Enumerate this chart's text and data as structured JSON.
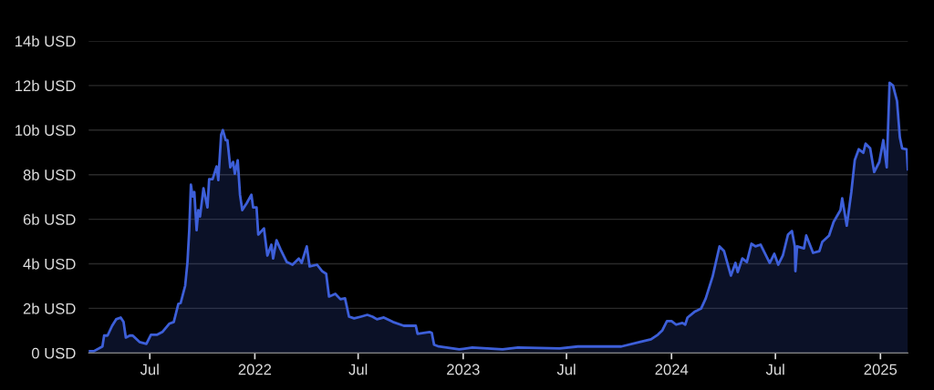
{
  "chart_data": {
    "type": "area",
    "xlim": [
      "2021-03-16",
      "2025-02-18"
    ],
    "xticks": [
      {
        "value": "2021-07-01",
        "label": "Jul"
      },
      {
        "value": "2022-01-01",
        "label": "2022"
      },
      {
        "value": "2022-07-01",
        "label": "Jul"
      },
      {
        "value": "2023-01-01",
        "label": "2023"
      },
      {
        "value": "2023-07-01",
        "label": "Jul"
      },
      {
        "value": "2024-01-01",
        "label": "2024"
      },
      {
        "value": "2024-07-01",
        "label": "Jul"
      },
      {
        "value": "2025-01-01",
        "label": "2025"
      }
    ],
    "ylim": [
      0,
      14
    ],
    "yticks": [
      {
        "value": 0,
        "label": "0 USD"
      },
      {
        "value": 2,
        "label": "2b USD"
      },
      {
        "value": 4,
        "label": "4b USD"
      },
      {
        "value": 6,
        "label": "6b USD"
      },
      {
        "value": 8,
        "label": "8b USD"
      },
      {
        "value": 10,
        "label": "10b USD"
      },
      {
        "value": 12,
        "label": "12b USD"
      },
      {
        "value": 14,
        "label": "14b USD"
      }
    ],
    "grid": "y",
    "legend": false,
    "series": [
      {
        "color": "#3d5fd9",
        "x": [
          "2021-03-17",
          "2021-03-25",
          "2021-04-09",
          "2021-04-12",
          "2021-04-18",
          "2021-04-26",
          "2021-05-03",
          "2021-05-11",
          "2021-05-16",
          "2021-05-20",
          "2021-05-27",
          "2021-06-01",
          "2021-06-13",
          "2021-06-25",
          "2021-07-03",
          "2021-07-14",
          "2021-07-23",
          "2021-08-04",
          "2021-08-12",
          "2021-08-20",
          "2021-08-24",
          "2021-09-01",
          "2021-09-05",
          "2021-09-08",
          "2021-09-11",
          "2021-09-14",
          "2021-09-17",
          "2021-09-21",
          "2021-09-24",
          "2021-09-27",
          "2021-10-03",
          "2021-10-10",
          "2021-10-13",
          "2021-10-19",
          "2021-10-26",
          "2021-10-29",
          "2021-11-03",
          "2021-11-06",
          "2021-11-11",
          "2021-11-14",
          "2021-11-19",
          "2021-11-24",
          "2021-11-27",
          "2021-12-02",
          "2021-12-06",
          "2021-12-10",
          "2021-12-18",
          "2021-12-26",
          "2021-12-29",
          "2022-01-04",
          "2022-01-07",
          "2022-01-17",
          "2022-01-23",
          "2022-01-30",
          "2022-02-02",
          "2022-02-08",
          "2022-02-15",
          "2022-02-26",
          "2022-03-08",
          "2022-03-19",
          "2022-03-24",
          "2022-04-02",
          "2022-04-07",
          "2022-04-20",
          "2022-04-29",
          "2022-05-06",
          "2022-05-11",
          "2022-05-22",
          "2022-05-31",
          "2022-06-08",
          "2022-06-15",
          "2022-06-24",
          "2022-07-06",
          "2022-07-17",
          "2022-07-26",
          "2022-08-03",
          "2022-08-15",
          "2022-08-31",
          "2022-09-19",
          "2022-10-10",
          "2022-10-13",
          "2022-11-03",
          "2022-11-07",
          "2022-11-11",
          "2022-11-19",
          "2022-12-25",
          "2023-01-17",
          "2023-03-11",
          "2023-04-07",
          "2023-06-19",
          "2023-07-21",
          "2023-10-05",
          "2023-11-06",
          "2023-11-26",
          "2023-12-08",
          "2023-12-16",
          "2023-12-24",
          "2024-01-01",
          "2024-01-09",
          "2024-01-20",
          "2024-01-25",
          "2024-01-29",
          "2024-02-10",
          "2024-02-22",
          "2024-03-01",
          "2024-03-13",
          "2024-03-17",
          "2024-03-25",
          "2024-04-02",
          "2024-04-14",
          "2024-04-22",
          "2024-04-26",
          "2024-05-04",
          "2024-05-12",
          "2024-05-20",
          "2024-05-27",
          "2024-06-05",
          "2024-06-21",
          "2024-06-29",
          "2024-07-06",
          "2024-07-14",
          "2024-07-23",
          "2024-07-30",
          "2024-08-04",
          "2024-08-05",
          "2024-08-08",
          "2024-08-20",
          "2024-08-24",
          "2024-09-05",
          "2024-09-16",
          "2024-09-21",
          "2024-10-03",
          "2024-10-11",
          "2024-10-23",
          "2024-10-26",
          "2024-11-03",
          "2024-11-11",
          "2024-11-17",
          "2024-11-24",
          "2024-12-02",
          "2024-12-06",
          "2024-12-14",
          "2024-12-21",
          "2024-12-30",
          "2025-01-06",
          "2025-01-12",
          "2025-01-17",
          "2025-01-23",
          "2025-01-30",
          "2025-02-04",
          "2025-02-08",
          "2025-02-16",
          "2025-02-18"
        ],
        "values": [
          0.08,
          0.08,
          0.29,
          0.78,
          0.78,
          1.22,
          1.51,
          1.59,
          1.39,
          0.69,
          0.78,
          0.78,
          0.49,
          0.41,
          0.82,
          0.82,
          0.94,
          1.31,
          1.39,
          2.2,
          2.24,
          3.02,
          4.08,
          5.47,
          7.55,
          7.02,
          7.22,
          5.51,
          6.41,
          6.12,
          7.39,
          6.53,
          7.8,
          7.8,
          8.37,
          7.76,
          9.8,
          10.0,
          9.55,
          9.55,
          8.33,
          8.57,
          8.04,
          8.65,
          7.1,
          6.41,
          6.73,
          7.1,
          6.53,
          6.53,
          5.31,
          5.59,
          4.37,
          4.86,
          4.24,
          5.06,
          4.65,
          4.08,
          3.96,
          4.24,
          4.04,
          4.78,
          3.88,
          3.96,
          3.67,
          3.55,
          2.53,
          2.65,
          2.41,
          2.45,
          1.63,
          1.55,
          1.63,
          1.71,
          1.63,
          1.51,
          1.59,
          1.39,
          1.22,
          1.22,
          0.86,
          0.94,
          0.9,
          0.37,
          0.29,
          0.16,
          0.24,
          0.16,
          0.24,
          0.2,
          0.29,
          0.29,
          0.49,
          0.61,
          0.82,
          1.02,
          1.43,
          1.43,
          1.27,
          1.35,
          1.27,
          1.59,
          1.84,
          2.0,
          2.45,
          3.43,
          3.88,
          4.78,
          4.57,
          3.47,
          4.04,
          3.63,
          4.24,
          4.08,
          4.9,
          4.78,
          4.86,
          4.04,
          4.45,
          3.96,
          4.37,
          5.31,
          5.47,
          4.78,
          3.67,
          4.78,
          4.69,
          5.27,
          4.49,
          4.57,
          4.98,
          5.27,
          5.88,
          6.41,
          6.94,
          5.71,
          7.22,
          8.65,
          9.14,
          8.98,
          9.39,
          9.18,
          8.12,
          8.57,
          9.55,
          8.33,
          12.12,
          12.0,
          11.31,
          9.67,
          9.18,
          9.14,
          8.24
        ]
      }
    ]
  }
}
